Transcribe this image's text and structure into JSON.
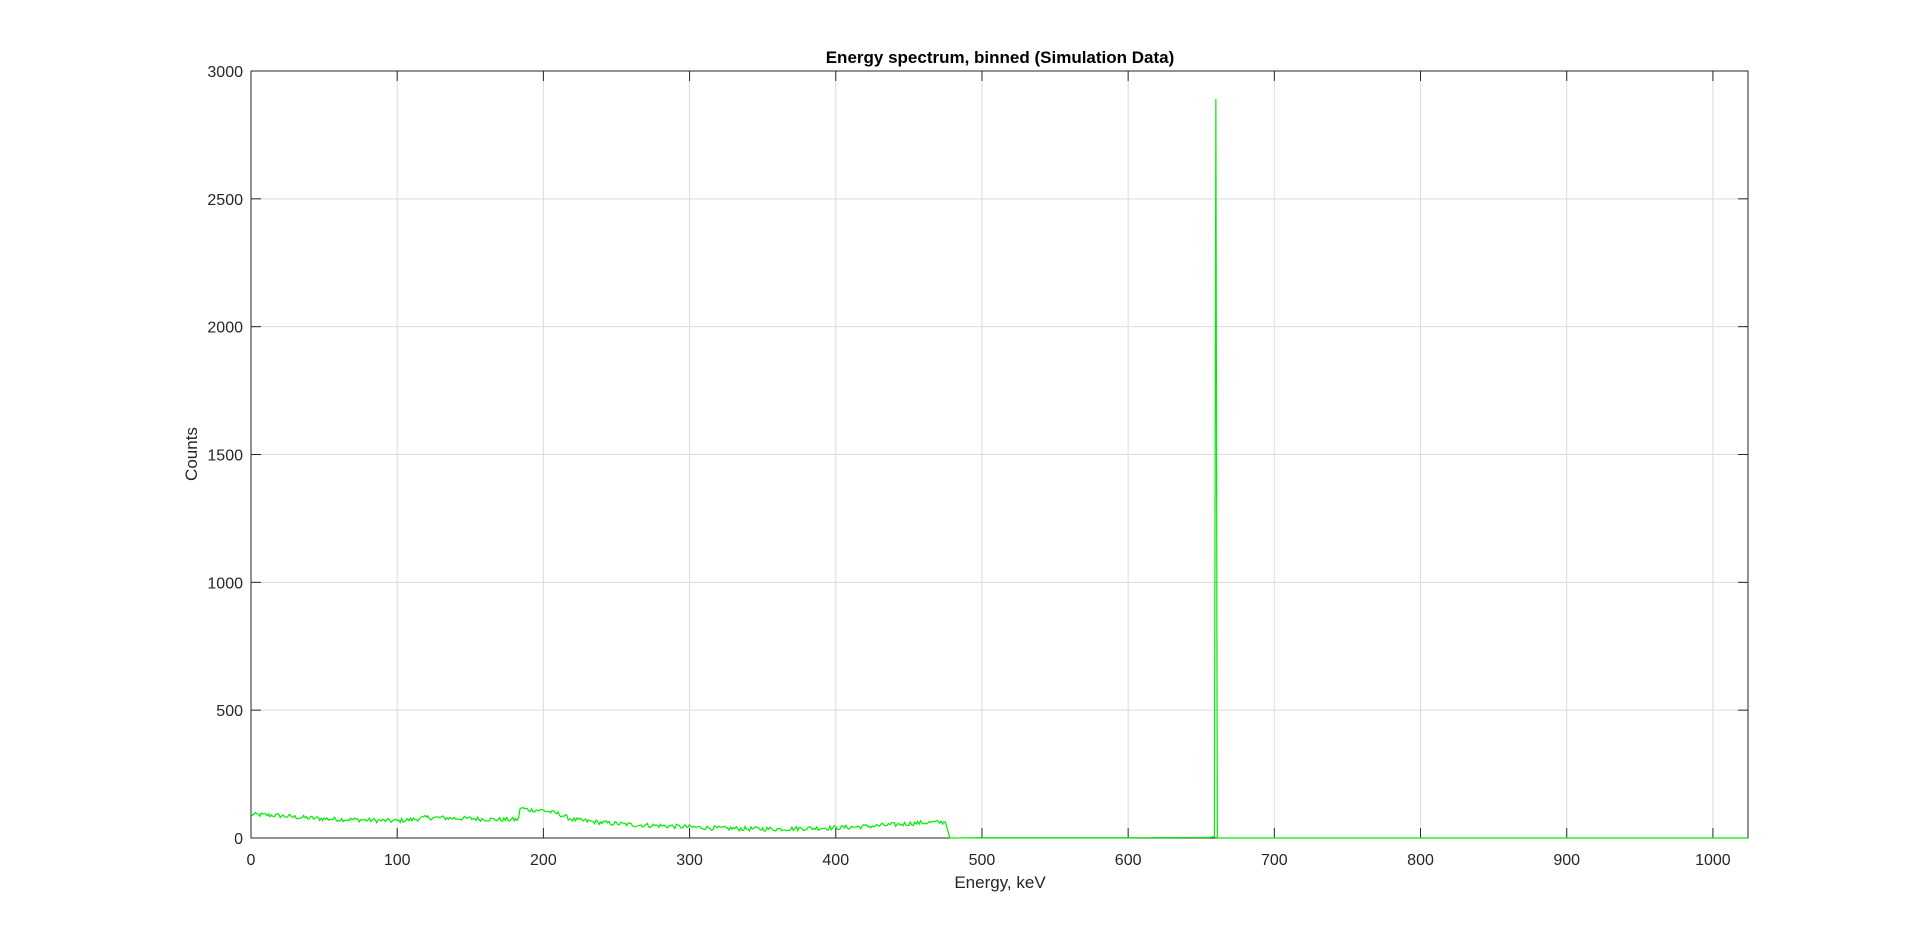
{
  "chart_data": {
    "type": "line",
    "title": "Energy spectrum, binned (Simulation Data)",
    "xlabel": "Energy, keV",
    "ylabel": "Counts",
    "xlim": [
      0,
      1024
    ],
    "ylim": [
      0,
      3000
    ],
    "xticks": [
      0,
      100,
      200,
      300,
      400,
      500,
      600,
      700,
      800,
      900,
      1000
    ],
    "yticks": [
      0,
      500,
      1000,
      1500,
      2000,
      2500,
      3000
    ],
    "grid": true,
    "line_color": "#00ee00",
    "series": [
      {
        "points": [
          [
            0,
            92
          ],
          [
            10,
            90
          ],
          [
            20,
            87
          ],
          [
            30,
            82
          ],
          [
            40,
            78
          ],
          [
            50,
            75
          ],
          [
            60,
            73
          ],
          [
            70,
            72
          ],
          [
            80,
            70
          ],
          [
            90,
            68
          ],
          [
            100,
            67
          ],
          [
            110,
            72
          ],
          [
            120,
            80
          ],
          [
            130,
            79
          ],
          [
            140,
            77
          ],
          [
            150,
            76
          ],
          [
            160,
            74
          ],
          [
            170,
            72
          ],
          [
            183,
            72
          ],
          [
            184,
            118
          ],
          [
            190,
            110
          ],
          [
            200,
            108
          ],
          [
            210,
            95
          ],
          [
            220,
            72
          ],
          [
            240,
            60
          ],
          [
            260,
            52
          ],
          [
            280,
            48
          ],
          [
            300,
            43
          ],
          [
            320,
            38
          ],
          [
            340,
            36
          ],
          [
            360,
            35
          ],
          [
            380,
            38
          ],
          [
            400,
            40
          ],
          [
            420,
            45
          ],
          [
            440,
            52
          ],
          [
            460,
            60
          ],
          [
            475,
            62
          ],
          [
            478,
            0
          ],
          [
            500,
            1
          ],
          [
            560,
            1
          ],
          [
            600,
            1
          ],
          [
            655,
            2
          ],
          [
            659,
            5
          ],
          [
            660,
            2890
          ],
          [
            661,
            0
          ],
          [
            662,
            0
          ],
          [
            700,
            0
          ],
          [
            800,
            0
          ],
          [
            900,
            0
          ],
          [
            1024,
            0
          ]
        ]
      }
    ]
  }
}
